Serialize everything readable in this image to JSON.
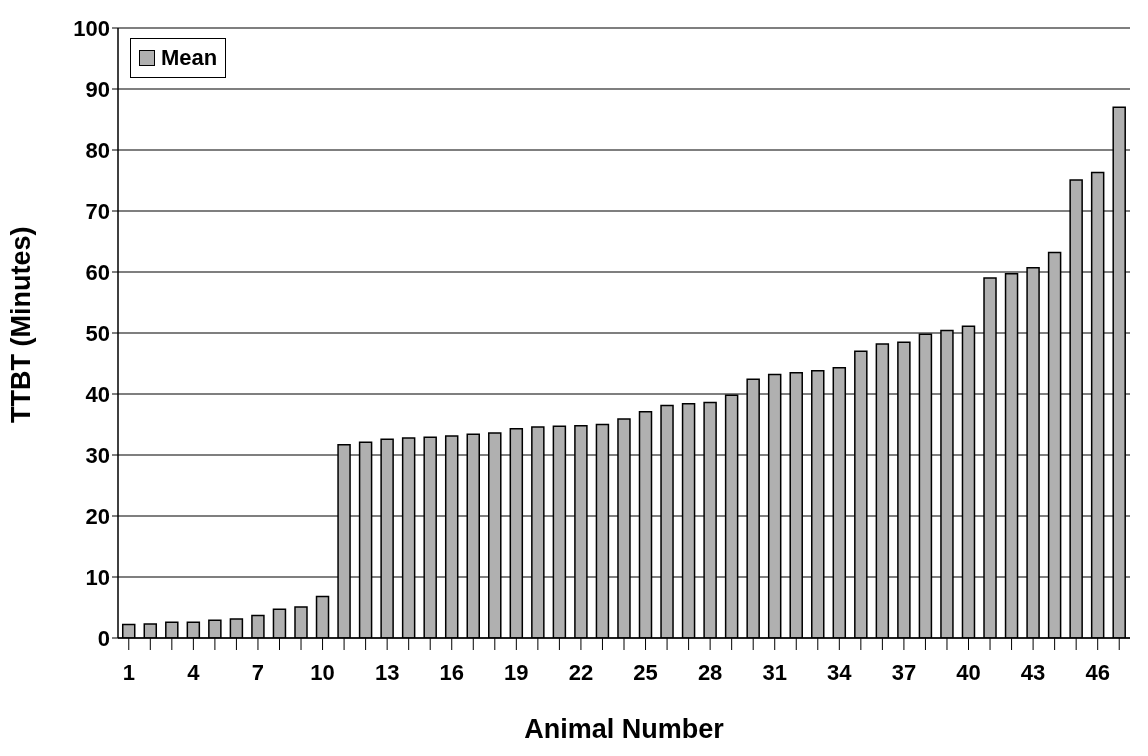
{
  "chart_data": {
    "type": "bar",
    "xlabel": "Animal Number",
    "ylabel": "TTBT (Minutes)",
    "categories": [
      "1",
      null,
      null,
      "4",
      null,
      null,
      "7",
      null,
      null,
      "10",
      null,
      null,
      "13",
      null,
      null,
      "16",
      null,
      null,
      "19",
      null,
      null,
      "22",
      null,
      null,
      "25",
      null,
      null,
      "28",
      null,
      null,
      "31",
      null,
      null,
      "34",
      null,
      null,
      "37",
      null,
      null,
      "40",
      null,
      null,
      "43",
      null,
      null,
      "46",
      null
    ],
    "series": [
      {
        "name": "Mean",
        "color": "#b0b0b0",
        "values": [
          2.2,
          2.3,
          2.6,
          2.6,
          2.9,
          3.1,
          3.7,
          4.7,
          5.1,
          6.8,
          31.7,
          32.1,
          32.6,
          32.8,
          32.9,
          33.1,
          33.4,
          33.6,
          34.3,
          34.6,
          34.7,
          34.8,
          35.0,
          35.9,
          37.1,
          38.1,
          38.4,
          38.6,
          39.8,
          42.4,
          43.2,
          43.5,
          43.8,
          44.3,
          47.0,
          48.2,
          48.5,
          49.8,
          50.4,
          51.1,
          59.0,
          59.7,
          60.7,
          63.2,
          75.1,
          76.3,
          87.0
        ]
      }
    ],
    "ylim": [
      0,
      100
    ],
    "yticks": [
      0,
      10,
      20,
      30,
      40,
      50,
      60,
      70,
      80,
      90,
      100
    ],
    "grid": "y",
    "legend": "top left"
  }
}
